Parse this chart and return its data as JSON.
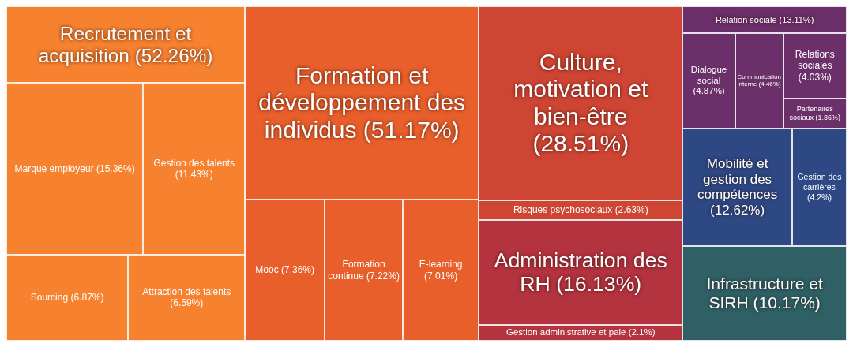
{
  "chart_data": {
    "type": "other",
    "categories": [
      "Recrutement et acquisition",
      "Formation et développement des individus",
      "Culture, motivation et bien-être",
      "Administration des RH",
      "Relation sociale",
      "Mobilité et gestion des compétences",
      "Infrastructure et SIRH",
      "Marque employeur",
      "Gestion des talents",
      "Sourcing",
      "Attraction des talents",
      "Mooc",
      "Formation continue",
      "E-learning",
      "Risques psychosociaux",
      "Gestion administrative et paie",
      "Dialogue social",
      "Communication interne",
      "Relations sociales",
      "Partenaires sociaux",
      "Gestion des carrières"
    ],
    "series": [
      {
        "color": "#f6812f",
        "values": [
          52.26,
          null,
          null,
          null,
          null,
          null,
          null,
          15.36,
          11.43,
          6.87,
          6.59,
          null,
          null,
          null,
          null,
          null,
          null,
          null,
          null,
          null,
          null
        ],
        "value_labels": [
          "(52.26%)",
          null,
          null,
          null,
          null,
          null,
          null,
          "(15.36%)",
          "(11.43%)",
          "(6.87%)",
          "(6.59%)",
          null,
          null,
          null,
          null,
          null,
          null,
          null,
          null,
          null,
          null
        ]
      },
      {
        "color": "#e95f2b",
        "values": [
          null,
          51.17,
          null,
          null,
          null,
          null,
          null,
          null,
          null,
          null,
          null,
          7.36,
          7.22,
          7.01,
          null,
          null,
          null,
          null,
          null,
          null,
          null
        ],
        "value_labels": [
          null,
          "(51.17%)",
          null,
          null,
          null,
          null,
          null,
          null,
          null,
          null,
          null,
          "(7.36%)",
          "(7.22%)",
          "(7.01%)",
          null,
          null,
          null,
          null,
          null,
          null,
          null
        ]
      },
      {
        "color": "#cf4533",
        "values": [
          null,
          null,
          28.51,
          null,
          null,
          null,
          null,
          null,
          null,
          null,
          null,
          null,
          null,
          null,
          2.63,
          null,
          null,
          null,
          null,
          null,
          null
        ],
        "value_labels": [
          null,
          null,
          "(28.51%)",
          null,
          null,
          null,
          null,
          null,
          null,
          null,
          null,
          null,
          null,
          null,
          "(2.63%)",
          null,
          null,
          null,
          null,
          null,
          null
        ]
      },
      {
        "color": "#b3333f",
        "values": [
          null,
          null,
          null,
          16.13,
          null,
          null,
          null,
          null,
          null,
          null,
          null,
          null,
          null,
          null,
          null,
          2.1,
          null,
          null,
          null,
          null,
          null
        ],
        "value_labels": [
          null,
          null,
          null,
          "(16.13%)",
          null,
          null,
          null,
          null,
          null,
          null,
          null,
          null,
          null,
          null,
          null,
          "(2.1%)",
          null,
          null,
          null,
          null,
          null
        ]
      },
      {
        "color": "#6b2f6a",
        "values": [
          null,
          null,
          null,
          null,
          13.11,
          null,
          null,
          null,
          null,
          null,
          null,
          null,
          null,
          null,
          null,
          null,
          4.87,
          4.46,
          4.03,
          1.86,
          null
        ],
        "value_labels": [
          null,
          null,
          null,
          null,
          "(13.11%)",
          null,
          null,
          null,
          null,
          null,
          null,
          null,
          null,
          null,
          null,
          null,
          "(4.87%)",
          "(4.46%)",
          "(4.03%)",
          "(1.86%)",
          null
        ]
      },
      {
        "color": "#2e4884",
        "values": [
          null,
          null,
          null,
          null,
          null,
          12.62,
          null,
          null,
          null,
          null,
          null,
          null,
          null,
          null,
          null,
          null,
          null,
          null,
          null,
          null,
          4.2
        ],
        "value_labels": [
          null,
          null,
          null,
          null,
          null,
          "(12.62%)",
          null,
          null,
          null,
          null,
          null,
          null,
          null,
          null,
          null,
          null,
          null,
          null,
          null,
          null,
          "(4.2%)"
        ]
      },
      {
        "color": "#2e6066",
        "values": [
          null,
          null,
          null,
          null,
          null,
          null,
          10.17,
          null,
          null,
          null,
          null,
          null,
          null,
          null,
          null,
          null,
          null,
          null,
          null,
          null,
          null
        ],
        "value_labels": [
          null,
          null,
          null,
          null,
          null,
          null,
          "(10.17%)",
          null,
          null,
          null,
          null,
          null,
          null,
          null,
          null,
          null,
          null,
          null,
          null,
          null,
          null
        ]
      }
    ]
  }
}
